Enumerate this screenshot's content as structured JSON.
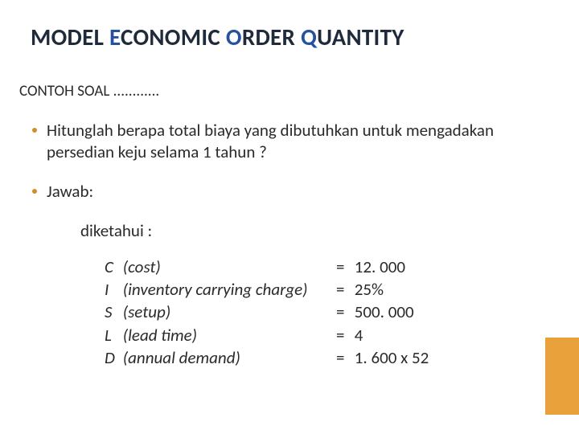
{
  "title": {
    "word1": "MODEL",
    "w2_accent": "E",
    "w2_rest": "CONOMIC",
    "w3_accent": "O",
    "w3_rest": "RDER",
    "w4_accent": "Q",
    "w4_rest": "UANTITY"
  },
  "subheader": "CONTOH SOAL ............",
  "bullets": {
    "b1": "Hitunglah berapa total biaya yang dibutuhkan untuk mengadakan persedian keju selama 1 tahun ?",
    "b2": "Jawab:"
  },
  "diketahui": "diketahui  :",
  "vars": [
    {
      "sym": "C",
      "desc": "(cost)",
      "eq": "=",
      "val": "12. 000"
    },
    {
      "sym": "I",
      "desc": "(inventory carrying charge)",
      "eq": "=",
      "val": " 25%"
    },
    {
      "sym": "S",
      "desc": "(setup)",
      "eq": "=",
      "val": " 500. 000"
    },
    {
      "sym": "L",
      "desc": "(lead time)",
      "eq": "=",
      "val": " 4"
    },
    {
      "sym": "D",
      "desc": "(annual demand)",
      "eq": "=",
      "val": " 1. 600  x  52"
    }
  ],
  "colors": {
    "title_dark": "#1f2a3a",
    "title_accent": "#2650a0",
    "text": "#2a2a2a",
    "bullet": "#d88a2e",
    "bar": "#e9a13b",
    "background": "#ffffff"
  }
}
